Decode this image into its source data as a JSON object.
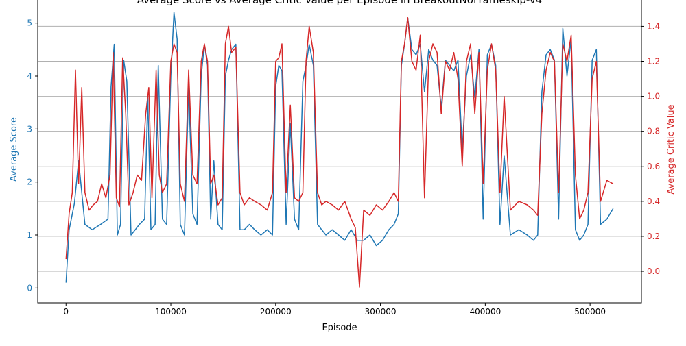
{
  "chart_data": {
    "type": "line",
    "title": "Average Score vs Average Critic Value per Episode in BreakoutNoFrameskip-v4",
    "xlabel": "Episode",
    "ylabel_left": "Average Score",
    "ylabel_right": "Average Critic Value",
    "xlim": [
      -27000,
      549000
    ],
    "ylim_left": [
      -0.28,
      5.5
    ],
    "ylim_right": [
      -0.18,
      1.57
    ],
    "x_ticks": [
      0,
      100000,
      200000,
      300000,
      400000,
      500000
    ],
    "x_tick_labels": [
      "0",
      "100000",
      "200000",
      "300000",
      "400000",
      "500000"
    ],
    "y_left_ticks": [
      0,
      1,
      2,
      3,
      4,
      5
    ],
    "y_left_tick_labels": [
      "0",
      "1",
      "2",
      "3",
      "4",
      "5"
    ],
    "y_right_ticks": [
      0.0,
      0.2,
      0.4,
      0.6,
      0.8,
      1.0,
      1.2,
      1.4
    ],
    "y_right_tick_labels": [
      "0.0",
      "0.2",
      "0.4",
      "0.6",
      "0.8",
      "1.0",
      "1.2",
      "1.4"
    ],
    "grid": "horizontal gridlines at right-axis ticks",
    "colors": {
      "score": "#1f77b4",
      "critic": "#d62728",
      "grid": "#b0b0b0",
      "axis": "#000000"
    },
    "series": [
      {
        "axis": "left",
        "color": "#1f77b4",
        "x": [
          0,
          3000,
          8000,
          12000,
          18000,
          25000,
          33000,
          40000,
          43000,
          46000,
          49000,
          52000,
          55000,
          58000,
          62000,
          66000,
          70000,
          75000,
          78000,
          81000,
          85000,
          88000,
          92000,
          96000,
          100000,
          103000,
          106000,
          109000,
          113000,
          117000,
          121000,
          125000,
          129000,
          132000,
          135000,
          138000,
          141000,
          145000,
          149000,
          152000,
          155000,
          158000,
          162000,
          166000,
          170000,
          175000,
          180000,
          186000,
          192000,
          197000,
          200000,
          203000,
          206000,
          210000,
          214000,
          218000,
          222000,
          226000,
          229000,
          232000,
          236000,
          240000,
          244000,
          248000,
          254000,
          260000,
          266000,
          272000,
          278000,
          284000,
          290000,
          296000,
          302000,
          308000,
          313000,
          317000,
          320000,
          323000,
          326000,
          330000,
          334000,
          338000,
          342000,
          346000,
          350000,
          354000,
          358000,
          362000,
          366000,
          370000,
          374000,
          378000,
          382000,
          386000,
          390000,
          394000,
          398000,
          402000,
          406000,
          410000,
          414000,
          418000,
          424000,
          432000,
          440000,
          446000,
          450000,
          454000,
          458000,
          462000,
          466000,
          470000,
          474000,
          478000,
          482000,
          486000,
          490000,
          494000,
          498000,
          502000,
          506000,
          510000,
          516000,
          522000
        ],
        "values": [
          0.1,
          1.1,
          1.6,
          2.4,
          1.2,
          1.1,
          1.2,
          1.3,
          3.8,
          4.6,
          1.0,
          1.2,
          4.3,
          3.9,
          1.0,
          1.1,
          1.2,
          1.3,
          3.6,
          1.1,
          1.2,
          4.2,
          1.3,
          1.2,
          4.0,
          5.2,
          4.7,
          1.2,
          1.0,
          3.8,
          1.4,
          1.2,
          4.0,
          4.6,
          4.2,
          1.3,
          2.4,
          1.2,
          1.1,
          4.0,
          4.3,
          4.5,
          4.6,
          1.1,
          1.1,
          1.2,
          1.1,
          1.0,
          1.1,
          1.0,
          3.8,
          4.2,
          4.1,
          1.2,
          3.1,
          1.3,
          1.1,
          3.9,
          4.2,
          4.6,
          4.2,
          1.2,
          1.1,
          1.0,
          1.1,
          1.0,
          0.9,
          1.1,
          0.9,
          0.9,
          1.0,
          0.8,
          0.9,
          1.1,
          1.2,
          1.4,
          4.2,
          4.6,
          5.1,
          4.5,
          4.4,
          4.6,
          3.7,
          4.5,
          4.3,
          4.2,
          3.4,
          4.3,
          4.2,
          4.1,
          4.3,
          2.6,
          4.0,
          4.4,
          3.6,
          4.5,
          1.3,
          4.4,
          4.6,
          4.2,
          1.2,
          2.5,
          1.0,
          1.1,
          1.0,
          0.9,
          1.0,
          3.7,
          4.4,
          4.5,
          4.3,
          1.3,
          4.9,
          4.0,
          4.7,
          1.1,
          0.9,
          1.0,
          1.2,
          4.3,
          4.5,
          1.2,
          1.3,
          1.5
        ]
      },
      {
        "axis": "right",
        "color": "#d62728",
        "x": [
          0,
          3000,
          6000,
          9000,
          12000,
          15000,
          18000,
          22000,
          26000,
          30000,
          34000,
          38000,
          42000,
          45000,
          48000,
          51000,
          54000,
          57000,
          60000,
          64000,
          68000,
          72000,
          76000,
          79000,
          82000,
          86000,
          89000,
          92000,
          96000,
          100000,
          103000,
          106000,
          109000,
          113000,
          117000,
          121000,
          125000,
          129000,
          132000,
          135000,
          138000,
          141000,
          145000,
          149000,
          152000,
          155000,
          158000,
          162000,
          166000,
          170000,
          175000,
          180000,
          186000,
          192000,
          197000,
          200000,
          203000,
          206000,
          210000,
          214000,
          218000,
          222000,
          226000,
          229000,
          232000,
          236000,
          240000,
          244000,
          248000,
          254000,
          260000,
          266000,
          272000,
          276000,
          280000,
          284000,
          290000,
          296000,
          302000,
          308000,
          313000,
          317000,
          320000,
          323000,
          326000,
          330000,
          334000,
          338000,
          342000,
          346000,
          350000,
          354000,
          358000,
          362000,
          366000,
          370000,
          374000,
          378000,
          382000,
          386000,
          390000,
          394000,
          398000,
          402000,
          406000,
          410000,
          414000,
          418000,
          424000,
          432000,
          440000,
          446000,
          450000,
          454000,
          458000,
          462000,
          466000,
          470000,
          474000,
          478000,
          482000,
          486000,
          490000,
          494000,
          498000,
          502000,
          506000,
          510000,
          516000,
          522000
        ],
        "values": [
          0.07,
          0.33,
          0.45,
          1.15,
          0.5,
          1.05,
          0.45,
          0.35,
          0.38,
          0.4,
          0.5,
          0.42,
          0.55,
          1.25,
          0.42,
          0.37,
          1.22,
          0.9,
          0.38,
          0.45,
          0.55,
          0.52,
          0.9,
          1.05,
          0.42,
          1.15,
          0.55,
          0.45,
          0.5,
          1.2,
          1.3,
          1.25,
          0.5,
          0.4,
          1.15,
          0.55,
          0.5,
          1.2,
          1.3,
          1.2,
          0.5,
          0.55,
          0.38,
          0.42,
          1.3,
          1.4,
          1.25,
          1.28,
          0.45,
          0.38,
          0.42,
          0.4,
          0.38,
          0.35,
          0.45,
          1.2,
          1.22,
          1.3,
          0.45,
          0.95,
          0.42,
          0.4,
          0.45,
          1.2,
          1.4,
          1.25,
          0.45,
          0.38,
          0.4,
          0.38,
          0.35,
          0.4,
          0.3,
          0.25,
          -0.09,
          0.35,
          0.32,
          0.38,
          0.35,
          0.4,
          0.45,
          0.4,
          1.2,
          1.3,
          1.45,
          1.2,
          1.15,
          1.35,
          0.42,
          1.2,
          1.3,
          1.25,
          0.9,
          1.2,
          1.15,
          1.25,
          1.1,
          0.6,
          1.2,
          1.3,
          0.9,
          1.25,
          0.5,
          1.15,
          1.3,
          1.15,
          0.45,
          1.0,
          0.35,
          0.4,
          0.38,
          0.35,
          0.32,
          0.9,
          1.15,
          1.25,
          1.2,
          0.45,
          1.3,
          1.2,
          1.35,
          0.55,
          0.3,
          0.35,
          0.45,
          1.1,
          1.2,
          0.4,
          0.52,
          0.5
        ]
      }
    ]
  }
}
